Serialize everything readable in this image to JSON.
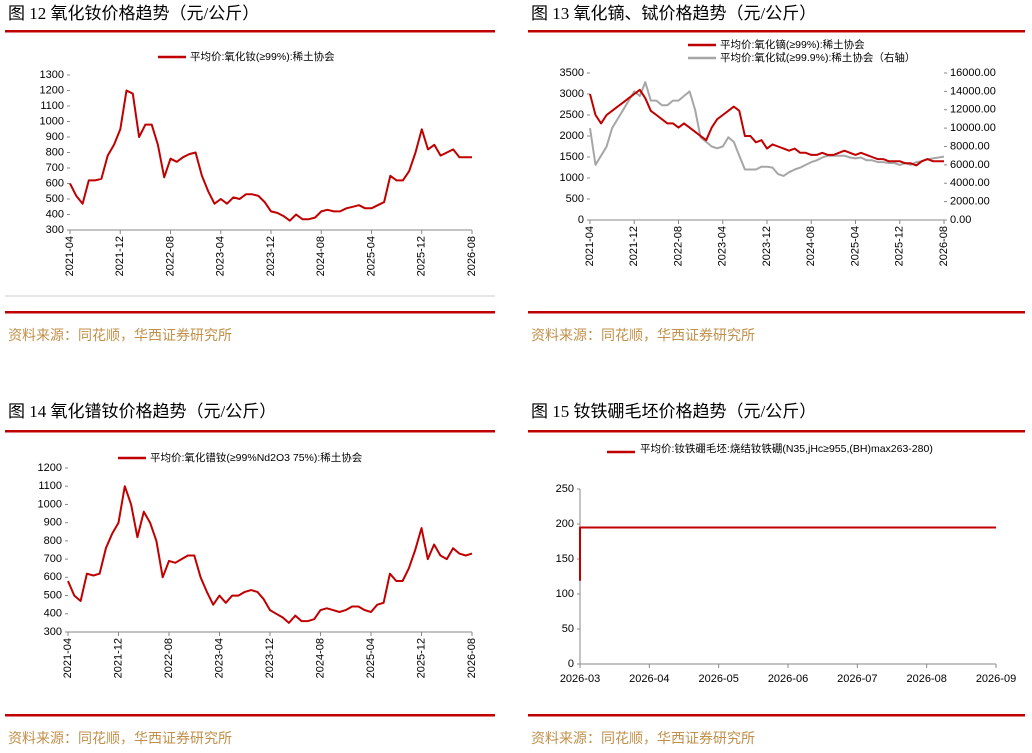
{
  "chart_data": [
    {
      "type": "line",
      "title": "图 12 氧化钕价格趋势（元/公斤）",
      "source": "资料来源：同花顺，华西证券研究所",
      "x": [
        "2021-04",
        "2021-05",
        "2021-06",
        "2021-07",
        "2021-08",
        "2021-09",
        "2021-10",
        "2021-11",
        "2021-12",
        "2022-01",
        "2022-02",
        "2022-03",
        "2022-04",
        "2022-05",
        "2022-06",
        "2022-07",
        "2022-08",
        "2022-09",
        "2022-10",
        "2022-11",
        "2022-12",
        "2023-01",
        "2023-02",
        "2023-03",
        "2023-04",
        "2023-05",
        "2023-06",
        "2023-07",
        "2023-08",
        "2023-09",
        "2023-10",
        "2023-11",
        "2023-12",
        "2024-01",
        "2024-02",
        "2024-03",
        "2024-04",
        "2024-05",
        "2024-06",
        "2024-07",
        "2024-08",
        "2024-09",
        "2024-10",
        "2024-11",
        "2024-12",
        "2025-01",
        "2025-02",
        "2025-03",
        "2025-04",
        "2025-05",
        "2025-06",
        "2025-07",
        "2025-08",
        "2025-09",
        "2025-10",
        "2025-11",
        "2025-12",
        "2026-01",
        "2026-02",
        "2026-03",
        "2026-04",
        "2026-05",
        "2026-06",
        "2026-07",
        "2026-08"
      ],
      "xticks": [
        "2021-04",
        "2021-12",
        "2022-08",
        "2023-04",
        "2023-12",
        "2024-08",
        "2025-04",
        "2025-12",
        "2026-08"
      ],
      "series": [
        {
          "name": "平均价:氧化钕(≥99%):稀土协会",
          "color": "#c00000",
          "values": [
            600,
            520,
            470,
            620,
            620,
            630,
            780,
            850,
            950,
            1200,
            1180,
            900,
            980,
            980,
            850,
            640,
            760,
            740,
            770,
            790,
            800,
            650,
            550,
            470,
            500,
            470,
            510,
            500,
            530,
            530,
            520,
            480,
            420,
            410,
            390,
            360,
            400,
            370,
            370,
            380,
            420,
            430,
            420,
            420,
            440,
            450,
            460,
            440,
            440,
            460,
            480,
            650,
            620,
            620,
            680,
            800,
            950,
            820,
            850,
            780,
            800,
            820,
            770,
            770,
            770
          ]
        }
      ],
      "ylim": [
        300,
        1300
      ],
      "yticks": [
        300,
        400,
        500,
        600,
        700,
        800,
        900,
        1000,
        1100,
        1200,
        1300
      ]
    },
    {
      "type": "line",
      "title": "图 13 氧化镝、铽价格趋势（元/公斤）",
      "source": "资料来源：同花顺，华西证券研究所",
      "x": [
        "2021-04",
        "2021-05",
        "2021-06",
        "2021-07",
        "2021-08",
        "2021-09",
        "2021-10",
        "2021-11",
        "2021-12",
        "2022-01",
        "2022-02",
        "2022-03",
        "2022-04",
        "2022-05",
        "2022-06",
        "2022-07",
        "2022-08",
        "2022-09",
        "2022-10",
        "2022-11",
        "2022-12",
        "2023-01",
        "2023-02",
        "2023-03",
        "2023-04",
        "2023-05",
        "2023-06",
        "2023-07",
        "2023-08",
        "2023-09",
        "2023-10",
        "2023-11",
        "2023-12",
        "2024-01",
        "2024-02",
        "2024-03",
        "2024-04",
        "2024-05",
        "2024-06",
        "2024-07",
        "2024-08",
        "2024-09",
        "2024-10",
        "2024-11",
        "2024-12",
        "2025-01",
        "2025-02",
        "2025-03",
        "2025-04",
        "2025-05",
        "2025-06",
        "2025-07",
        "2025-08",
        "2025-09",
        "2025-10",
        "2025-11",
        "2025-12",
        "2026-01",
        "2026-02",
        "2026-03",
        "2026-04",
        "2026-05",
        "2026-06",
        "2026-07",
        "2026-08"
      ],
      "xticks": [
        "2021-04",
        "2021-12",
        "2022-08",
        "2023-04",
        "2023-12",
        "2024-08",
        "2025-04",
        "2025-12",
        "2026-08"
      ],
      "series": [
        {
          "name": "平均价:氧化铽(≥99.9%):稀土协会（右轴）",
          "color": "#a6a6a6",
          "axis": "y2",
          "values": [
            10000,
            6000,
            7000,
            8000,
            10000,
            11000,
            12000,
            13000,
            14000,
            13500,
            15000,
            13000,
            13000,
            12500,
            12500,
            13000,
            13000,
            13500,
            14000,
            12000,
            9000,
            8500,
            8000,
            7800,
            8000,
            9000,
            8500,
            7000,
            5500,
            5500,
            5500,
            5800,
            5800,
            5700,
            5000,
            4800,
            5200,
            5500,
            5700,
            6000,
            6300,
            6500,
            6800,
            7000,
            7000,
            7000,
            7000,
            6800,
            6700,
            6800,
            6500,
            6500,
            6300,
            6300,
            6200,
            6200,
            6000,
            6200,
            6000,
            6300,
            6400,
            6600,
            6700,
            6800,
            6900
          ]
        },
        {
          "name": "平均价:氧化镝(≥99%):稀土协会",
          "color": "#c00000",
          "values": [
            3000,
            2500,
            2300,
            2500,
            2600,
            2700,
            2800,
            2900,
            3000,
            3100,
            2900,
            2600,
            2500,
            2400,
            2300,
            2300,
            2200,
            2300,
            2200,
            2100,
            2000,
            1900,
            2200,
            2400,
            2500,
            2600,
            2700,
            2600,
            2000,
            2000,
            1850,
            1900,
            1700,
            1800,
            1750,
            1700,
            1650,
            1700,
            1600,
            1600,
            1550,
            1550,
            1600,
            1550,
            1550,
            1600,
            1650,
            1600,
            1550,
            1600,
            1550,
            1500,
            1450,
            1450,
            1400,
            1400,
            1400,
            1350,
            1350,
            1300,
            1400,
            1450,
            1400,
            1400,
            1400
          ]
        }
      ],
      "ylim": [
        0,
        3500
      ],
      "yticks": [
        0,
        500,
        1000,
        1500,
        2000,
        2500,
        3000,
        3500
      ],
      "y2lim": [
        0,
        16000
      ],
      "y2ticks": [
        {
          "value": 0,
          "label": "0.00"
        },
        {
          "value": 2000,
          "label": "2000.00"
        },
        {
          "value": 4000,
          "label": "4000.00"
        },
        {
          "value": 6000,
          "label": "6000.00"
        },
        {
          "value": 8000,
          "label": "8000.00"
        },
        {
          "value": 10000,
          "label": "10000.00"
        },
        {
          "value": 12000,
          "label": "12000.00"
        },
        {
          "value": 14000,
          "label": "14000.00"
        },
        {
          "value": 16000,
          "label": "16000.00"
        }
      ]
    },
    {
      "type": "line",
      "title": "图 14 氧化镨钕价格趋势（元/公斤）",
      "source": "资料来源：同花顺，华西证券研究所",
      "x": [
        "2021-04",
        "2021-05",
        "2021-06",
        "2021-07",
        "2021-08",
        "2021-09",
        "2021-10",
        "2021-11",
        "2021-12",
        "2022-01",
        "2022-02",
        "2022-03",
        "2022-04",
        "2022-05",
        "2022-06",
        "2022-07",
        "2022-08",
        "2022-09",
        "2022-10",
        "2022-11",
        "2022-12",
        "2023-01",
        "2023-02",
        "2023-03",
        "2023-04",
        "2023-05",
        "2023-06",
        "2023-07",
        "2023-08",
        "2023-09",
        "2023-10",
        "2023-11",
        "2023-12",
        "2024-01",
        "2024-02",
        "2024-03",
        "2024-04",
        "2024-05",
        "2024-06",
        "2024-07",
        "2024-08",
        "2024-09",
        "2024-10",
        "2024-11",
        "2024-12",
        "2025-01",
        "2025-02",
        "2025-03",
        "2025-04",
        "2025-05",
        "2025-06",
        "2025-07",
        "2025-08",
        "2025-09",
        "2025-10",
        "2025-11",
        "2025-12",
        "2026-01",
        "2026-02",
        "2026-03",
        "2026-04",
        "2026-05",
        "2026-06",
        "2026-07",
        "2026-08"
      ],
      "xticks": [
        "2021-04",
        "2021-12",
        "2022-08",
        "2023-04",
        "2023-12",
        "2024-08",
        "2025-04",
        "2025-12",
        "2026-08"
      ],
      "series": [
        {
          "name": "平均价:氧化镨钕(≥99%Nd2O3 75%):稀土协会",
          "color": "#c00000",
          "values": [
            580,
            500,
            470,
            620,
            610,
            620,
            760,
            840,
            900,
            1100,
            1000,
            820,
            960,
            900,
            800,
            600,
            690,
            680,
            700,
            720,
            720,
            600,
            520,
            450,
            500,
            460,
            500,
            500,
            520,
            530,
            520,
            480,
            420,
            400,
            380,
            350,
            390,
            360,
            360,
            370,
            420,
            430,
            420,
            410,
            420,
            440,
            440,
            420,
            410,
            450,
            460,
            620,
            580,
            580,
            650,
            750,
            870,
            700,
            780,
            720,
            700,
            760,
            730,
            720,
            730
          ]
        }
      ],
      "ylim": [
        300,
        1200
      ],
      "yticks": [
        300,
        400,
        500,
        600,
        700,
        800,
        900,
        1000,
        1100,
        1200
      ]
    },
    {
      "type": "line",
      "title": "图 15 钕铁硼毛坯价格趋势（元/公斤）",
      "source": "资料来源：同花顺，华西证券研究所",
      "x": [
        "2026-03",
        "2026-03",
        "2026-04",
        "2026-05",
        "2026-06",
        "2026-07",
        "2026-08",
        "2026-09"
      ],
      "xticks": [
        "2026-03",
        "2026-04",
        "2026-05",
        "2026-06",
        "2026-07",
        "2026-08",
        "2026-09"
      ],
      "series": [
        {
          "name": "平均价:钕铁硼毛坯:烧结钕铁硼(N35,jHc≥955,(BH)max263-280)",
          "color": "#c00000",
          "values": [
            119,
            195,
            195,
            195,
            195,
            195,
            195,
            195
          ]
        }
      ],
      "ylim": [
        0,
        250
      ],
      "yticks": [
        0,
        50,
        100,
        150,
        200,
        250
      ]
    }
  ]
}
